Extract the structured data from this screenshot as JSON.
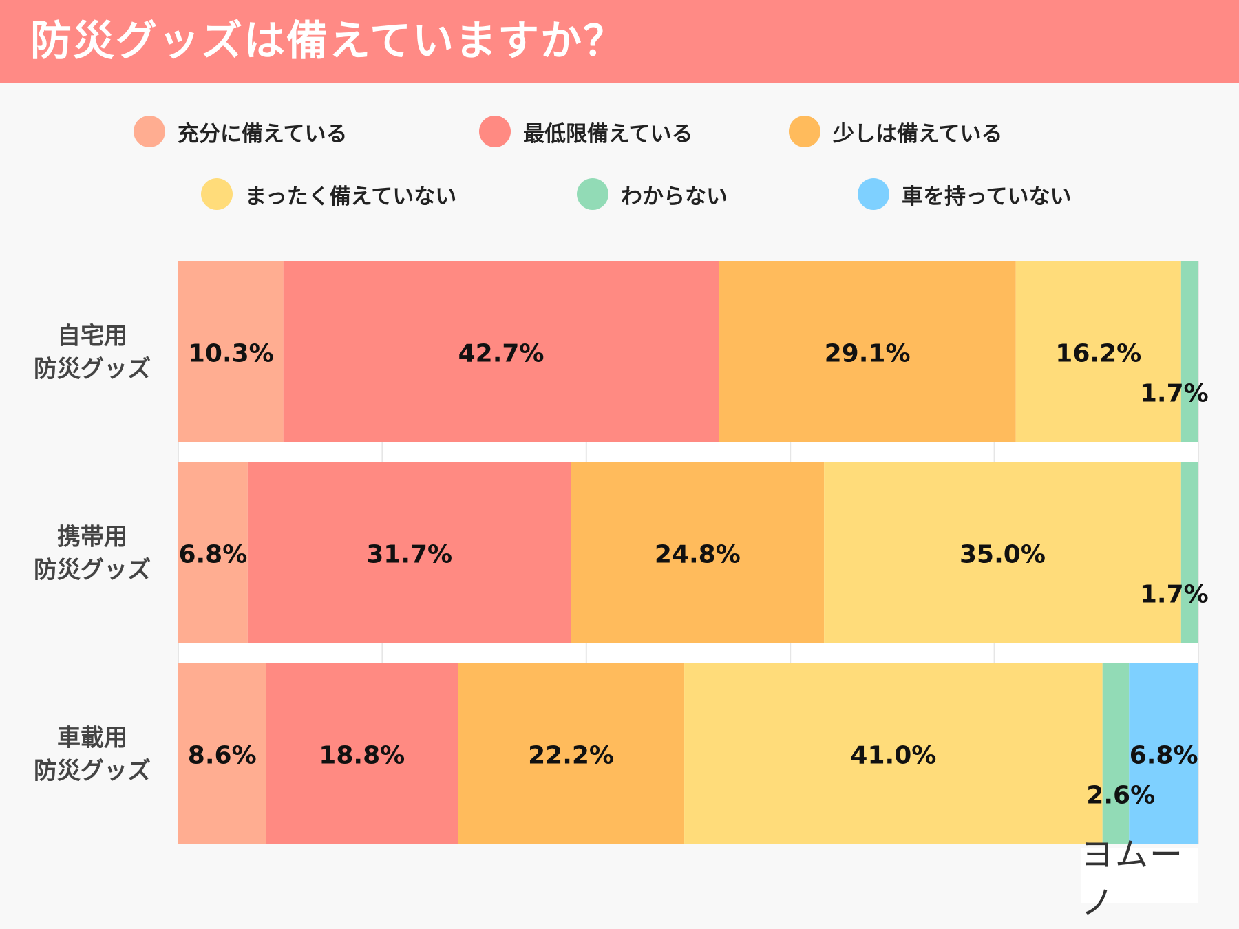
{
  "title": "防災グッズは備えていますか？",
  "brand": "ヨムーノ",
  "colors": {
    "title_bg": "#ff8a85",
    "background": "#f8f8f8",
    "grid": "#e6e6e6"
  },
  "chart_data": {
    "type": "bar",
    "orientation": "horizontal-stacked-100",
    "title": "防災グッズは備えていますか？",
    "xlabel": "",
    "ylabel": "",
    "xlim": [
      0,
      100
    ],
    "grid": true,
    "legend_position": "top",
    "categories": [
      "自宅用\n防災グッズ",
      "携帯用\n防災グッズ",
      "車載用\n防災グッズ"
    ],
    "series": [
      {
        "name": "充分に備えている",
        "color": "#ffad91",
        "values": [
          10.3,
          6.8,
          8.6
        ],
        "labels": [
          "10.3%",
          "6.8%",
          "8.6%"
        ]
      },
      {
        "name": "最低限備えている",
        "color": "#ff8a82",
        "values": [
          42.7,
          31.7,
          18.8
        ],
        "labels": [
          "42.7%",
          "31.7%",
          "18.8%"
        ]
      },
      {
        "name": "少しは備えている",
        "color": "#ffbb5c",
        "values": [
          29.1,
          24.8,
          22.2
        ],
        "labels": [
          "29.1%",
          "24.8%",
          "22.2%"
        ]
      },
      {
        "name": "まったく備えていない",
        "color": "#ffdc7a",
        "values": [
          16.2,
          35.0,
          41.0
        ],
        "labels": [
          "16.2%",
          "35.0%",
          "41.0%"
        ]
      },
      {
        "name": "わからない",
        "color": "#92dbb6",
        "values": [
          1.7,
          1.7,
          2.6
        ],
        "labels": [
          "1.7%",
          "1.7%",
          "2.6%"
        ]
      },
      {
        "name": "車を持っていない",
        "color": "#7ed0ff",
        "values": [
          0,
          0,
          6.8
        ],
        "labels": [
          "",
          "",
          "6.8%"
        ]
      }
    ]
  }
}
